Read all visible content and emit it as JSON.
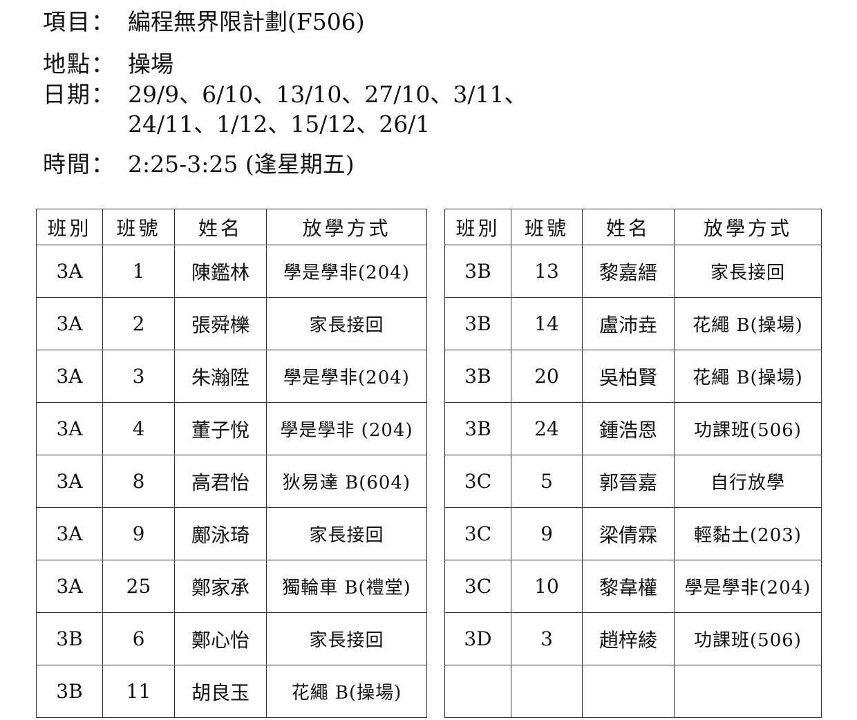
{
  "header": {
    "project_label": "項目：",
    "project": "編程無界限計劃(F506)",
    "location_label": "地點：",
    "location": "操場",
    "dates_label": "日期：",
    "dates_line1": "29/9、6/10、13/10、27/10、3/11、",
    "dates_line2": "24/11、1/12、15/12、26/1",
    "time_label": "時間：",
    "time": "2:25-3:25 (逢星期五)"
  },
  "columns": [
    "班別",
    "班號",
    "姓名",
    "放學方式"
  ],
  "left_table": [
    [
      "3A",
      "1",
      "陳鑑林",
      "學是學非(204)"
    ],
    [
      "3A",
      "2",
      "張舜櫟",
      "家長接回"
    ],
    [
      "3A",
      "3",
      "朱瀚陞",
      "學是學非(204)"
    ],
    [
      "3A",
      "4",
      "董子悅",
      "學是學非 (204)"
    ],
    [
      "3A",
      "8",
      "高君怡",
      "狄易達 B(604)"
    ],
    [
      "3A",
      "9",
      "鄺泳琦",
      "家長接回"
    ],
    [
      "3A",
      "25",
      "鄭家承",
      "獨輪車 B(禮堂)"
    ],
    [
      "3B",
      "6",
      "鄭心怡",
      "家長接回"
    ],
    [
      "3B",
      "11",
      "胡良玉",
      "花繩 B(操場)"
    ]
  ],
  "right_table": [
    [
      "3B",
      "13",
      "黎嘉縉",
      "家長接回"
    ],
    [
      "3B",
      "14",
      "盧沛垚",
      "花繩 B(操場)"
    ],
    [
      "3B",
      "20",
      "吳柏賢",
      "花繩 B(操場)"
    ],
    [
      "3B",
      "24",
      "鍾浩恩",
      "功課班(506)"
    ],
    [
      "3C",
      "5",
      "郭晉嘉",
      "自行放學"
    ],
    [
      "3C",
      "9",
      "梁倩霖",
      "輕黏土(203)"
    ],
    [
      "3C",
      "10",
      "黎韋權",
      "學是學非(204)"
    ],
    [
      "3D",
      "3",
      "趙梓綾",
      "功課班(506)"
    ],
    [
      "",
      "",
      "",
      ""
    ]
  ]
}
